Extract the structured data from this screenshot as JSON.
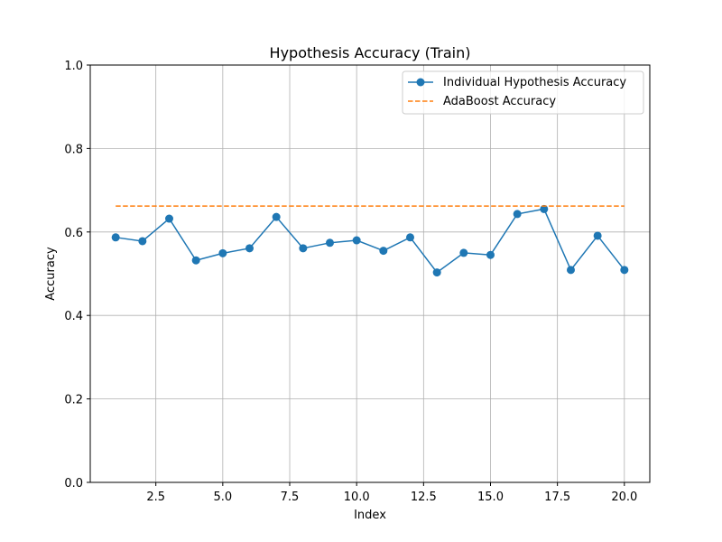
{
  "chart_data": {
    "type": "line",
    "title": "Hypothesis Accuracy (Train)",
    "xlabel": "Index",
    "ylabel": "Accuracy",
    "xlim": [
      0.05,
      20.95
    ],
    "ylim": [
      0.0,
      1.0
    ],
    "xticks": [
      2.5,
      5.0,
      7.5,
      10.0,
      12.5,
      15.0,
      17.5,
      20.0
    ],
    "xtick_labels": [
      "2.5",
      "5.0",
      "7.5",
      "10.0",
      "12.5",
      "15.0",
      "17.5",
      "20.0"
    ],
    "yticks": [
      0.0,
      0.2,
      0.4,
      0.6,
      0.8,
      1.0
    ],
    "ytick_labels": [
      "0.0",
      "0.2",
      "0.4",
      "0.6",
      "0.8",
      "1.0"
    ],
    "grid": true,
    "legend_position": "top-right",
    "series": [
      {
        "name": "Individual Hypothesis Accuracy",
        "style": "solid-marker",
        "color": "#1f77b4",
        "x": [
          1,
          2,
          3,
          4,
          5,
          6,
          7,
          8,
          9,
          10,
          11,
          12,
          13,
          14,
          15,
          16,
          17,
          18,
          19,
          20
        ],
        "values": [
          0.587,
          0.578,
          0.632,
          0.532,
          0.549,
          0.561,
          0.636,
          0.561,
          0.574,
          0.58,
          0.555,
          0.587,
          0.503,
          0.55,
          0.545,
          0.643,
          0.655,
          0.509,
          0.591,
          0.509
        ]
      },
      {
        "name": "AdaBoost Accuracy",
        "style": "dashed",
        "color": "#ff7f0e",
        "x": [
          1,
          20
        ],
        "values": [
          0.662,
          0.662
        ]
      }
    ]
  }
}
